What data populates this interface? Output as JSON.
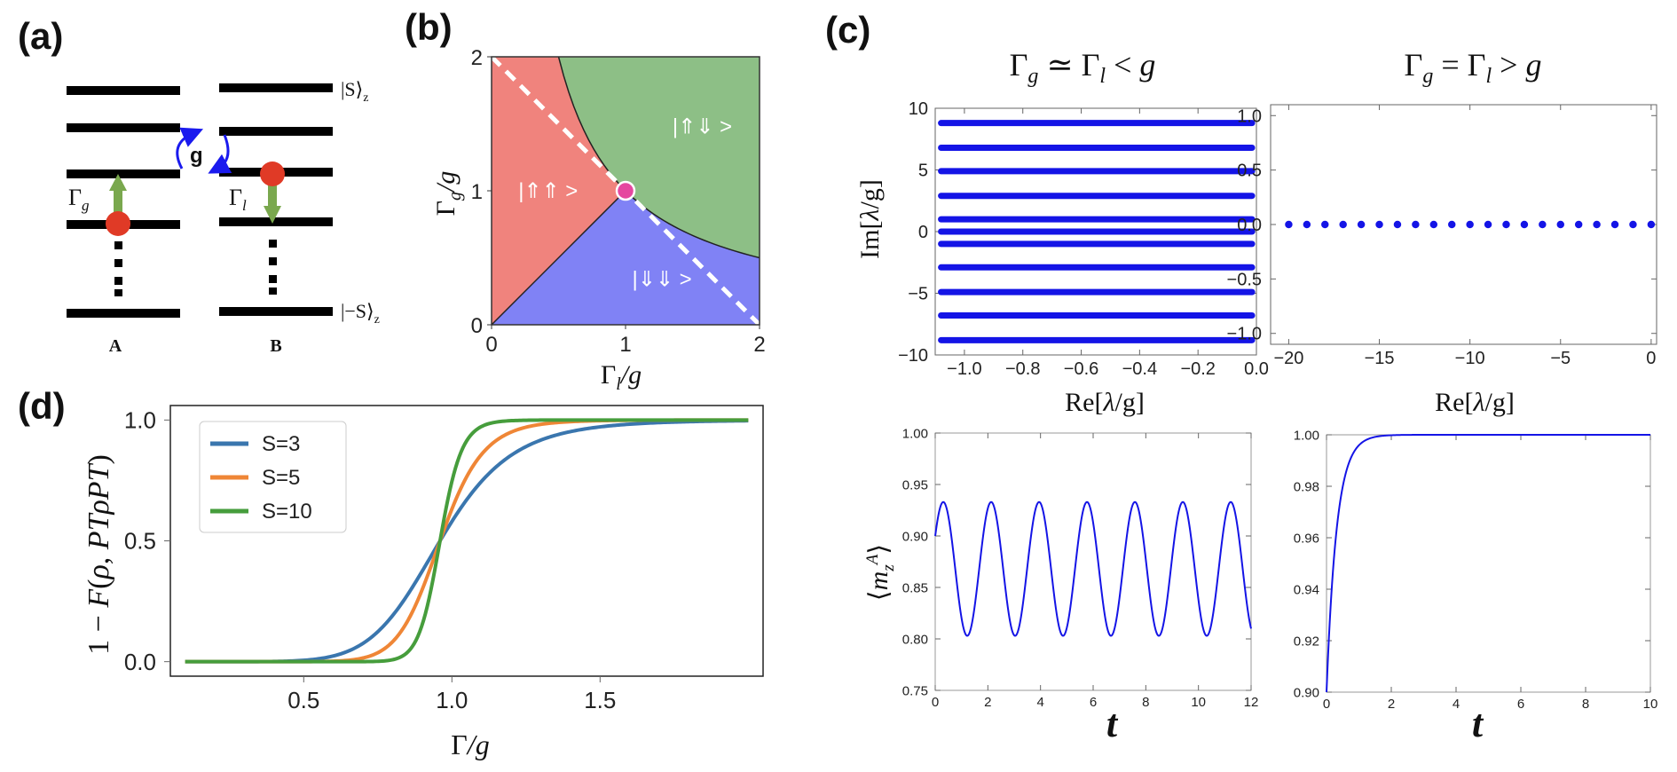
{
  "panels": {
    "a": "(a)",
    "b": "(b)",
    "c": "(c)",
    "d": "(d)"
  },
  "panel_a": {
    "coupling_label": "g",
    "gain_label": "Γ",
    "gain_sub": "g",
    "loss_label": "Γ",
    "loss_sub": "l",
    "top_state": "|S⟩",
    "top_state_sub": "z",
    "bottom_state": "|−S⟩",
    "bottom_state_sub": "z",
    "oscillator_a": "A",
    "oscillator_b": "B",
    "colors": {
      "particle": "#e03a26",
      "arrow": "#7aa84e",
      "coupling": "#1a1aee"
    }
  },
  "chart_data": [
    {
      "id": "b",
      "type": "phase-diagram",
      "xlabel": "Γl/g",
      "ylabel": "Γg/g",
      "xlim": [
        0,
        2
      ],
      "ylim": [
        0,
        2
      ],
      "xticks": [
        "0",
        "1",
        "2"
      ],
      "yticks": [
        "0",
        "1",
        "2"
      ],
      "regions": [
        {
          "label": "|⇑⇑ >",
          "color": "#f0837d"
        },
        {
          "label": "|⇑⇓ >",
          "color": "#8dbf86"
        },
        {
          "label": "|⇓⇓ >",
          "color": "#8082f5"
        }
      ],
      "exceptional_point": [
        1,
        1
      ],
      "dashed_line": [
        [
          0,
          2
        ],
        [
          2,
          0
        ]
      ]
    },
    {
      "id": "c1",
      "type": "scatter",
      "title": "Γg ≃ Γl < g",
      "xlabel": "Re[λ/g]",
      "ylabel": "Im[λ/g]",
      "xlim": [
        -1.1,
        0
      ],
      "ylim": [
        -10,
        10
      ],
      "xticks": [
        "−1.0",
        "−0.8",
        "−0.6",
        "−0.4",
        "−0.2",
        "0.0"
      ],
      "yticks": [
        "−10",
        "−5",
        "0",
        "5",
        "10"
      ],
      "bands_y": [
        -8.8,
        -6.8,
        -4.9,
        -2.9,
        -1.0,
        1.0,
        2.9,
        4.9,
        6.8,
        8.8,
        0
      ]
    },
    {
      "id": "c2",
      "type": "scatter",
      "title": "Γg = Γl > g",
      "xlabel": "Re[λ/g]",
      "ylabel": "",
      "xlim": [
        -21,
        0.3
      ],
      "ylim": [
        -1.1,
        1.1
      ],
      "xticks": [
        "−20",
        "−15",
        "−10",
        "−5",
        "0"
      ],
      "yticks": [
        "−1.0",
        "−0.5",
        "0.0",
        "0.5",
        "1.0"
      ],
      "points_x": [
        -20,
        -19,
        -18,
        -17,
        -16,
        -15,
        -14,
        -13,
        -12,
        -11,
        -10,
        -9,
        -8,
        -7,
        -6,
        -5,
        -4,
        -3,
        -2,
        -1,
        0
      ],
      "points_y": 0
    },
    {
      "id": "c3",
      "type": "line",
      "xlabel": "t",
      "ylabel": "⟨m_z^A⟩",
      "xlim": [
        0,
        12
      ],
      "ylim": [
        0.75,
        1.0
      ],
      "xticks": [
        "0",
        "2",
        "4",
        "6",
        "8",
        "10",
        "12"
      ],
      "yticks": [
        "0.75",
        "0.80",
        "0.85",
        "0.90",
        "0.95",
        "1.00"
      ],
      "oscillation": {
        "mean": 0.868,
        "amplitude": 0.065,
        "period": 1.82,
        "start": 0.9
      }
    },
    {
      "id": "c4",
      "type": "line",
      "xlabel": "t",
      "ylabel": "",
      "xlim": [
        0,
        10
      ],
      "ylim": [
        0.9,
        1.0
      ],
      "xticks": [
        "0",
        "2",
        "4",
        "6",
        "8",
        "10"
      ],
      "yticks": [
        "0.90",
        "0.92",
        "0.94",
        "0.96",
        "0.98",
        "1.00"
      ],
      "relaxation": {
        "start": 0.9,
        "end": 1.0,
        "rate": 3.2
      }
    },
    {
      "id": "d",
      "type": "line",
      "xlabel": "Γ/g",
      "ylabel": "1 − F(ρ, PTρPT)",
      "xlim": [
        0.05,
        2.05
      ],
      "ylim": [
        -0.06,
        1.06
      ],
      "xticks": [
        "0.5",
        "1.0",
        "1.5"
      ],
      "yticks": [
        "0.0",
        "0.5",
        "1.0"
      ],
      "series": [
        {
          "name": "S=3",
          "color": "#3a76ae",
          "steepness": 3.6
        },
        {
          "name": "S=5",
          "color": "#ef8636",
          "steepness": 6.0
        },
        {
          "name": "S=10",
          "color": "#469d3c",
          "steepness": 12.0
        }
      ],
      "legend": "top-left"
    }
  ]
}
